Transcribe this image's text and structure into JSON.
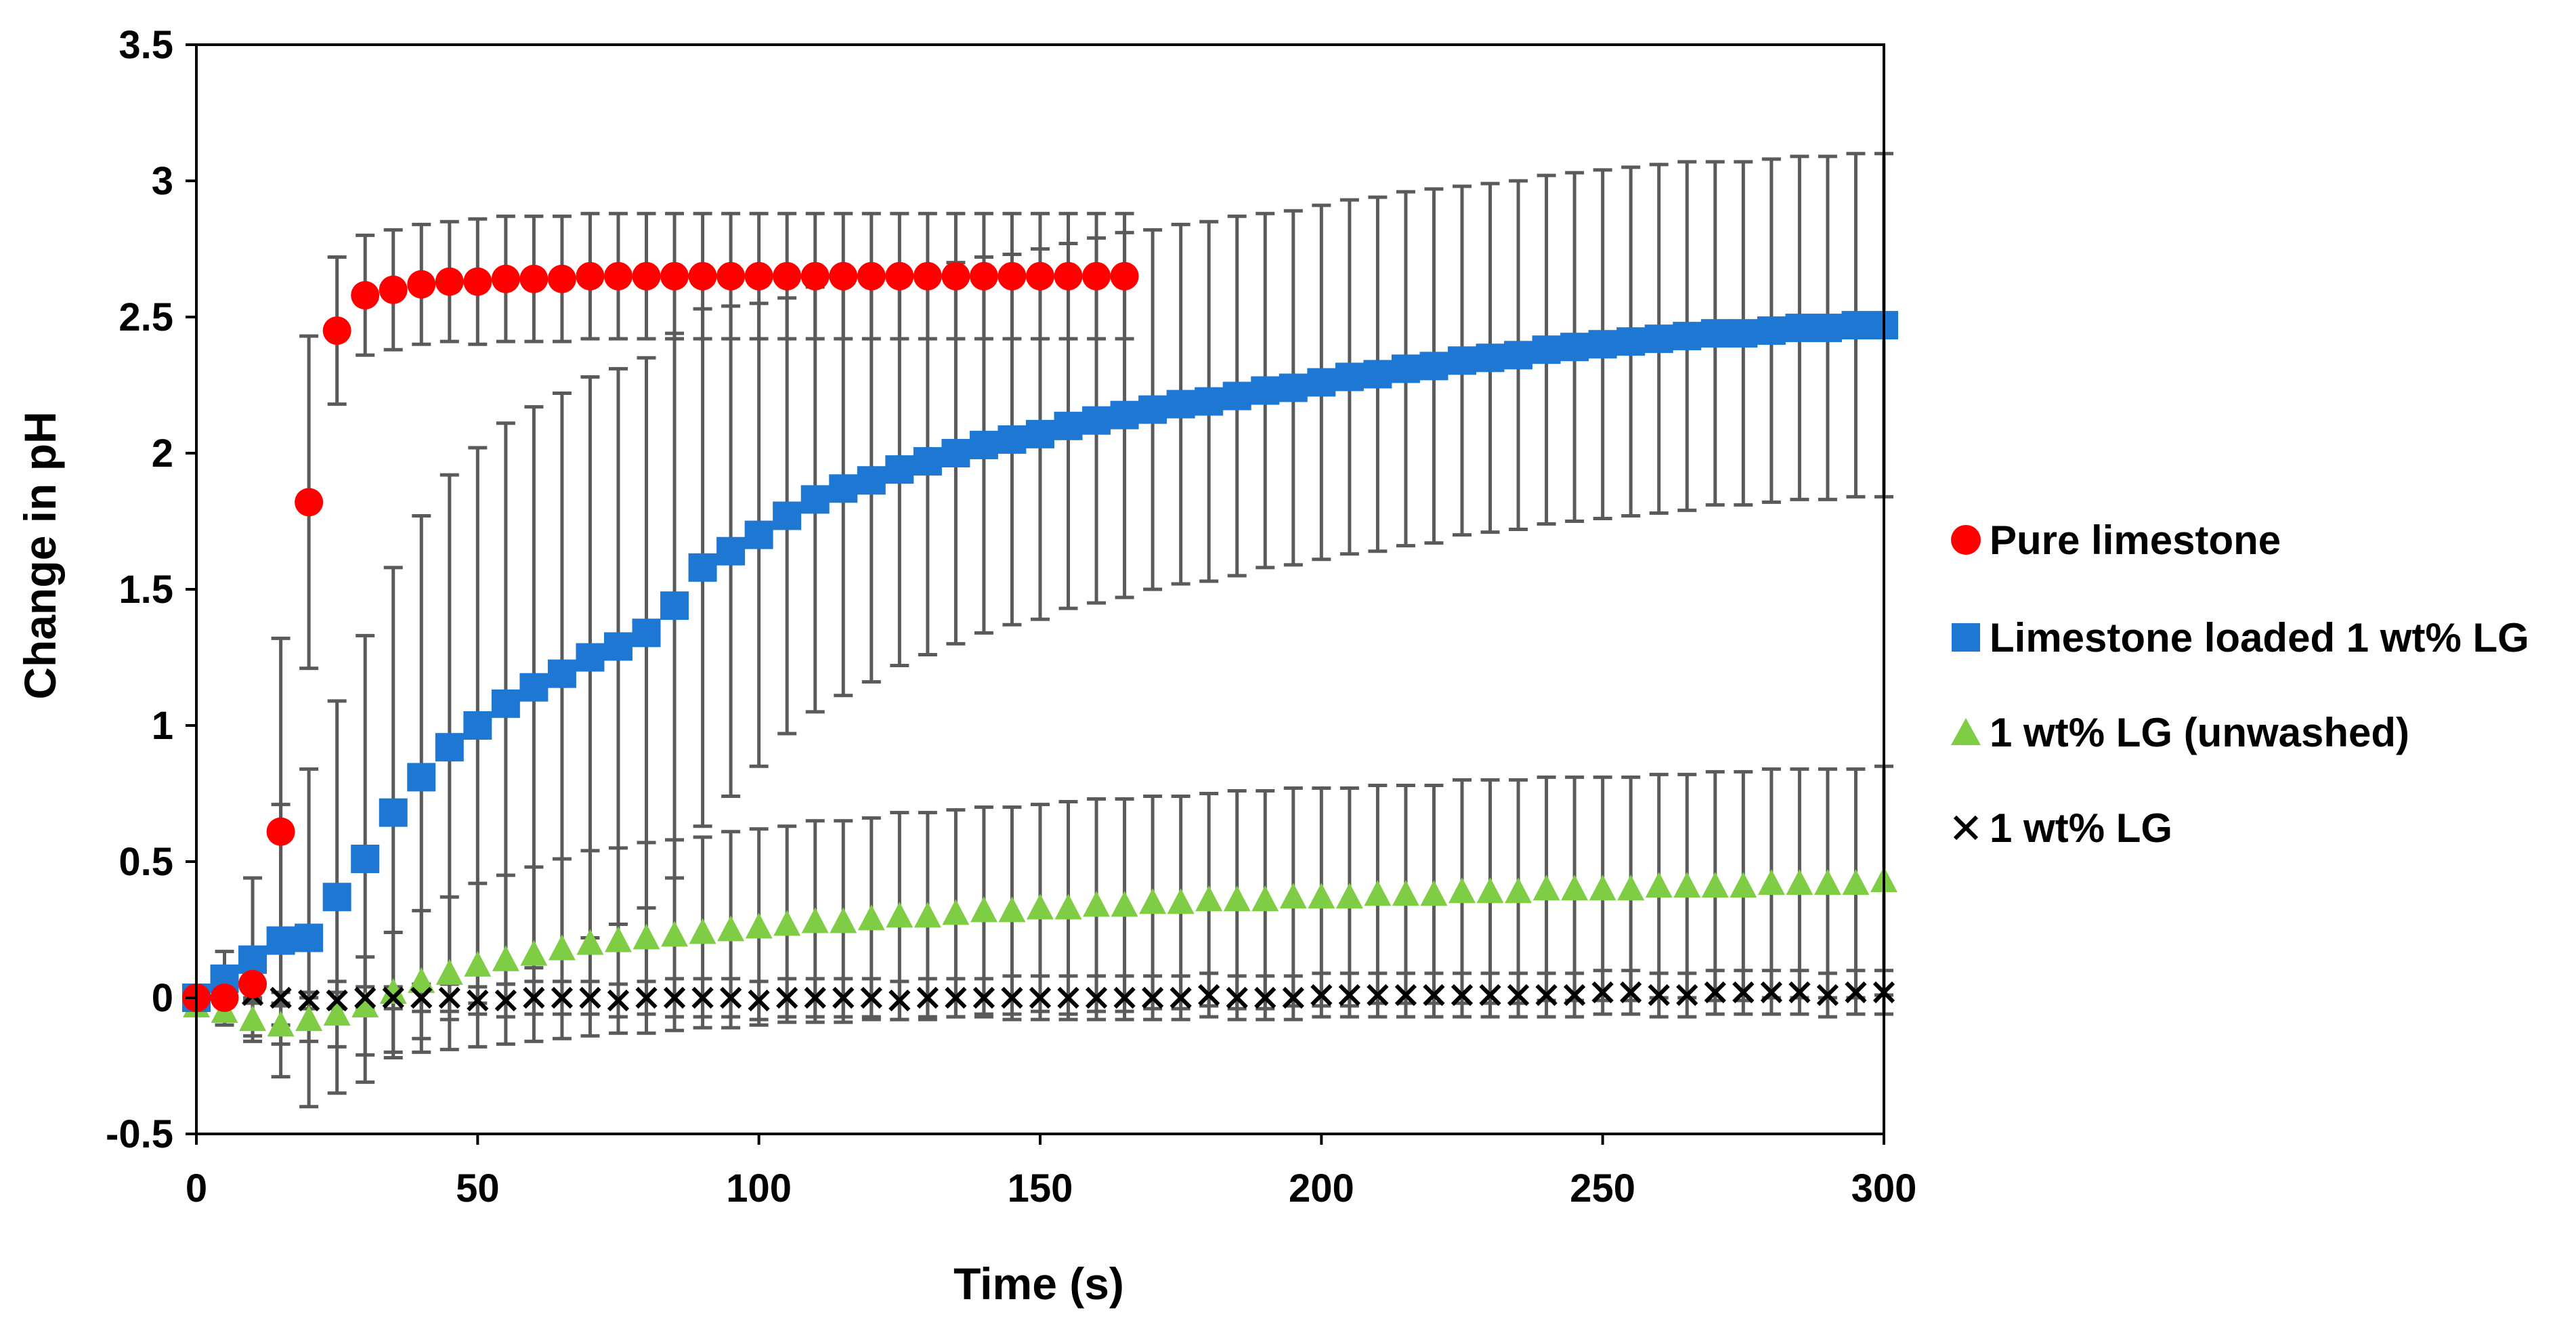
{
  "chart_data": {
    "type": "scatter",
    "title": "",
    "xlabel": "Time (s)",
    "ylabel": "Change in pH",
    "xlim": [
      0,
      300
    ],
    "ylim": [
      -0.5,
      3.5
    ],
    "xticks": [
      0,
      50,
      100,
      150,
      200,
      250,
      300
    ],
    "yticks": [
      -0.5,
      0,
      0.5,
      1,
      1.5,
      2,
      2.5,
      3,
      3.5
    ],
    "xtick_labels": [
      "0",
      "50",
      "100",
      "150",
      "200",
      "250",
      "300"
    ],
    "ytick_labels": [
      "-0.5",
      "0",
      "0.5",
      "1",
      "1.5",
      "2",
      "2.5",
      "3",
      "3.5"
    ],
    "grid": false,
    "legend_position": "right",
    "series": [
      {
        "name": "Pure limestone",
        "marker": "circle",
        "color": "#ff0000",
        "x": [
          0,
          5,
          10,
          15,
          20,
          25,
          30,
          35,
          40,
          45,
          50,
          55,
          60,
          65,
          70,
          75,
          80,
          85,
          90,
          95,
          100,
          105,
          110,
          115,
          120,
          125,
          130,
          135,
          140,
          145,
          150,
          155,
          160,
          165
        ],
        "y": [
          0,
          0,
          0.05,
          0.61,
          1.82,
          2.45,
          2.58,
          2.6,
          2.62,
          2.63,
          2.63,
          2.64,
          2.64,
          2.64,
          2.65,
          2.65,
          2.65,
          2.65,
          2.65,
          2.65,
          2.65,
          2.65,
          2.65,
          2.65,
          2.65,
          2.65,
          2.65,
          2.65,
          2.65,
          2.65,
          2.65,
          2.65,
          2.65,
          2.65
        ],
        "err": [
          0,
          0.02,
          0.05,
          0.71,
          0.61,
          0.27,
          0.22,
          0.22,
          0.22,
          0.22,
          0.23,
          0.23,
          0.23,
          0.23,
          0.23,
          0.23,
          0.23,
          0.23,
          0.23,
          0.23,
          0.23,
          0.23,
          0.23,
          0.23,
          0.23,
          0.23,
          0.23,
          0.23,
          0.23,
          0.23,
          0.23,
          0.23,
          0.23,
          0.23
        ]
      },
      {
        "name": "Limestone loaded 1 wt% LG",
        "marker": "square",
        "color": "#1f77d4",
        "x": [
          0,
          5,
          10,
          15,
          20,
          25,
          30,
          35,
          40,
          45,
          50,
          55,
          60,
          65,
          70,
          75,
          80,
          85,
          90,
          95,
          100,
          105,
          110,
          115,
          120,
          125,
          130,
          135,
          140,
          145,
          150,
          155,
          160,
          165,
          170,
          175,
          180,
          185,
          190,
          195,
          200,
          205,
          210,
          215,
          220,
          225,
          230,
          235,
          240,
          245,
          250,
          255,
          260,
          265,
          270,
          275,
          280,
          285,
          290,
          295,
          300
        ],
        "y": [
          0,
          0.07,
          0.14,
          0.21,
          0.22,
          0.37,
          0.51,
          0.68,
          0.81,
          0.92,
          1.0,
          1.08,
          1.14,
          1.19,
          1.25,
          1.29,
          1.34,
          1.44,
          1.58,
          1.64,
          1.7,
          1.77,
          1.83,
          1.87,
          1.9,
          1.94,
          1.97,
          2.0,
          2.03,
          2.05,
          2.07,
          2.1,
          2.12,
          2.14,
          2.16,
          2.18,
          2.19,
          2.21,
          2.23,
          2.24,
          2.26,
          2.28,
          2.29,
          2.31,
          2.32,
          2.34,
          2.35,
          2.36,
          2.38,
          2.39,
          2.4,
          2.41,
          2.42,
          2.43,
          2.44,
          2.44,
          2.45,
          2.46,
          2.46,
          2.47,
          2.47
        ],
        "err": [
          0,
          0.1,
          0.3,
          0.5,
          0.62,
          0.72,
          0.82,
          0.9,
          0.96,
          1.0,
          1.02,
          1.03,
          1.03,
          1.03,
          1.03,
          1.02,
          1.01,
          1.0,
          0.95,
          0.9,
          0.85,
          0.8,
          0.78,
          0.76,
          0.74,
          0.72,
          0.71,
          0.7,
          0.69,
          0.68,
          0.68,
          0.67,
          0.67,
          0.67,
          0.66,
          0.66,
          0.66,
          0.66,
          0.65,
          0.65,
          0.65,
          0.65,
          0.65,
          0.65,
          0.65,
          0.64,
          0.64,
          0.64,
          0.64,
          0.64,
          0.64,
          0.64,
          0.64,
          0.64,
          0.63,
          0.63,
          0.63,
          0.63,
          0.63,
          0.63,
          0.63
        ]
      },
      {
        "name": "1 wt% LG (unwashed)",
        "marker": "triangle",
        "color": "#7fcc45",
        "x": [
          0,
          5,
          10,
          15,
          20,
          25,
          30,
          35,
          40,
          45,
          50,
          55,
          60,
          65,
          70,
          75,
          80,
          85,
          90,
          95,
          100,
          105,
          110,
          115,
          120,
          125,
          130,
          135,
          140,
          145,
          150,
          155,
          160,
          165,
          170,
          175,
          180,
          185,
          190,
          195,
          200,
          205,
          210,
          215,
          220,
          225,
          230,
          235,
          240,
          245,
          250,
          255,
          260,
          265,
          270,
          275,
          280,
          285,
          290,
          295,
          300
        ],
        "y": [
          -0.03,
          -0.05,
          -0.08,
          -0.1,
          -0.08,
          -0.06,
          -0.03,
          0.02,
          0.06,
          0.09,
          0.12,
          0.14,
          0.16,
          0.18,
          0.2,
          0.21,
          0.22,
          0.23,
          0.24,
          0.25,
          0.26,
          0.27,
          0.28,
          0.28,
          0.29,
          0.3,
          0.3,
          0.31,
          0.32,
          0.32,
          0.33,
          0.33,
          0.34,
          0.34,
          0.35,
          0.35,
          0.36,
          0.36,
          0.36,
          0.37,
          0.37,
          0.37,
          0.38,
          0.38,
          0.38,
          0.39,
          0.39,
          0.39,
          0.4,
          0.4,
          0.4,
          0.4,
          0.41,
          0.41,
          0.41,
          0.41,
          0.42,
          0.42,
          0.42,
          0.42,
          0.43
        ],
        "err": [
          0,
          0.05,
          0.06,
          0.07,
          0.08,
          0.12,
          0.18,
          0.22,
          0.26,
          0.28,
          0.3,
          0.31,
          0.32,
          0.33,
          0.34,
          0.34,
          0.35,
          0.35,
          0.35,
          0.36,
          0.36,
          0.36,
          0.37,
          0.37,
          0.37,
          0.38,
          0.38,
          0.38,
          0.38,
          0.38,
          0.38,
          0.39,
          0.39,
          0.39,
          0.39,
          0.39,
          0.39,
          0.4,
          0.4,
          0.4,
          0.4,
          0.4,
          0.4,
          0.4,
          0.4,
          0.41,
          0.41,
          0.41,
          0.41,
          0.41,
          0.41,
          0.41,
          0.41,
          0.41,
          0.42,
          0.42,
          0.42,
          0.42,
          0.42,
          0.42,
          0.42
        ]
      },
      {
        "name": "1 wt% LG",
        "marker": "x",
        "color": "#000000",
        "x": [
          0,
          5,
          10,
          15,
          20,
          25,
          30,
          35,
          40,
          45,
          50,
          55,
          60,
          65,
          70,
          75,
          80,
          85,
          90,
          95,
          100,
          105,
          110,
          115,
          120,
          125,
          130,
          135,
          140,
          145,
          150,
          155,
          160,
          165,
          170,
          175,
          180,
          185,
          190,
          195,
          200,
          205,
          210,
          215,
          220,
          225,
          230,
          235,
          240,
          245,
          250,
          255,
          260,
          265,
          270,
          275,
          280,
          285,
          290,
          295,
          300
        ],
        "y": [
          0,
          0.01,
          0.01,
          0,
          -0.01,
          -0.01,
          0,
          0,
          0,
          0,
          -0.01,
          -0.01,
          0,
          0,
          0,
          -0.01,
          0,
          0,
          0,
          0,
          -0.01,
          0,
          0,
          0,
          0,
          -0.01,
          0,
          0,
          0,
          0,
          0,
          0,
          0,
          0,
          0,
          0,
          0.01,
          0,
          0,
          0,
          0.01,
          0.01,
          0.01,
          0.01,
          0.01,
          0.01,
          0.01,
          0.01,
          0.01,
          0.01,
          0.02,
          0.02,
          0.01,
          0.01,
          0.02,
          0.02,
          0.02,
          0.02,
          0.01,
          0.02,
          0.02
        ],
        "err": [
          0,
          0.01,
          0.02,
          0.02,
          0.03,
          0.03,
          0.04,
          0.04,
          0.05,
          0.05,
          0.05,
          0.06,
          0.06,
          0.06,
          0.06,
          0.06,
          0.06,
          0.07,
          0.07,
          0.07,
          0.07,
          0.07,
          0.07,
          0.07,
          0.07,
          0.07,
          0.07,
          0.07,
          0.07,
          0.08,
          0.08,
          0.08,
          0.08,
          0.08,
          0.08,
          0.08,
          0.08,
          0.08,
          0.08,
          0.08,
          0.08,
          0.08,
          0.08,
          0.08,
          0.08,
          0.08,
          0.08,
          0.08,
          0.08,
          0.08,
          0.08,
          0.08,
          0.08,
          0.08,
          0.08,
          0.08,
          0.08,
          0.08,
          0.08,
          0.08,
          0.08
        ]
      }
    ]
  },
  "colors": {
    "error_bar": "#5a5a5a",
    "axis": "#000000"
  }
}
